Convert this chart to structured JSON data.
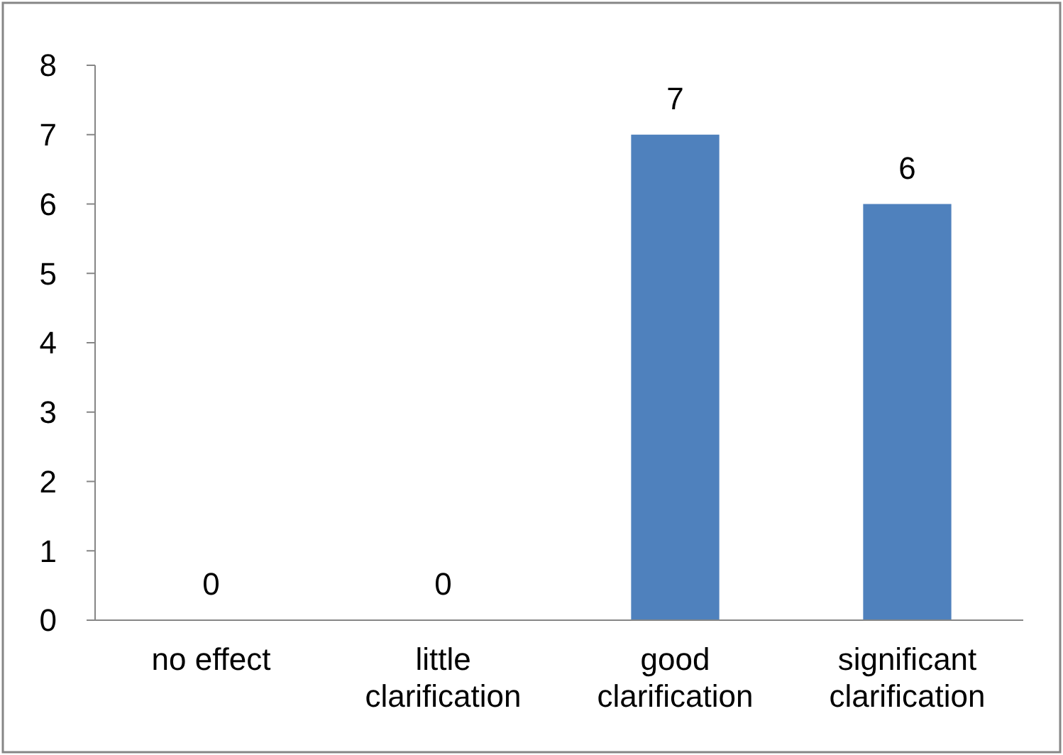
{
  "chart_data": {
    "type": "bar",
    "categories": [
      "no effect",
      "little clarification",
      "good clarification",
      "significant clarification"
    ],
    "values": [
      0,
      0,
      7,
      6
    ],
    "color": "#4f81bd",
    "ylim": [
      0,
      8
    ],
    "yticks": [
      0,
      1,
      2,
      3,
      4,
      5,
      6,
      7,
      8
    ],
    "data_labels": true
  }
}
